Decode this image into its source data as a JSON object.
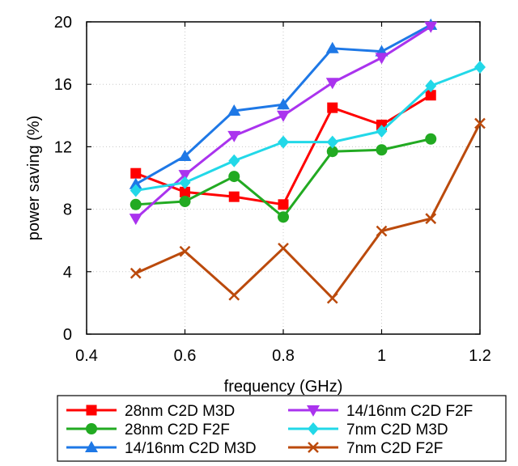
{
  "chart_data": {
    "type": "line",
    "xlabel": "frequency (GHz)",
    "ylabel": "power saving (%)",
    "xlim": [
      0.4,
      1.2
    ],
    "ylim": [
      0,
      20
    ],
    "xticks": [
      0.4,
      0.6,
      0.8,
      1,
      1.2
    ],
    "xtick_labels": [
      "0.4",
      "0.6",
      "0.8",
      "1",
      "1.2"
    ],
    "yticks": [
      0,
      4,
      8,
      12,
      16,
      20
    ],
    "ytick_labels": [
      "0",
      "4",
      "8",
      "12",
      "16",
      "20"
    ],
    "grid": true,
    "legend_position": "bottom",
    "series": [
      {
        "name": "28nm C2D M3D",
        "color": "#ff0000",
        "marker": "square",
        "x": [
          0.5,
          0.6,
          0.7,
          0.8,
          0.9,
          1.0,
          1.1
        ],
        "y": [
          10.3,
          9.1,
          8.8,
          8.3,
          14.5,
          13.4,
          15.3
        ]
      },
      {
        "name": "28nm C2D F2F",
        "color": "#22aa22",
        "marker": "circle",
        "x": [
          0.5,
          0.6,
          0.7,
          0.8,
          0.9,
          1.0,
          1.1
        ],
        "y": [
          8.3,
          8.5,
          10.1,
          7.5,
          11.7,
          11.8,
          12.5
        ]
      },
      {
        "name": "14/16nm C2D M3D",
        "color": "#1e78e6",
        "marker": "triangle-up",
        "x": [
          0.5,
          0.6,
          0.7,
          0.8,
          0.9,
          1.0,
          1.1
        ],
        "y": [
          9.6,
          11.4,
          14.3,
          14.7,
          18.3,
          18.1,
          19.8
        ]
      },
      {
        "name": "14/16nm C2D F2F",
        "color": "#aa33ee",
        "marker": "triangle-down",
        "x": [
          0.5,
          0.6,
          0.7,
          0.8,
          0.9,
          1.0,
          1.1
        ],
        "y": [
          7.4,
          10.2,
          12.7,
          14.0,
          16.1,
          17.7,
          19.7
        ]
      },
      {
        "name": "7nm C2D M3D",
        "color": "#22d8e8",
        "marker": "diamond",
        "x": [
          0.5,
          0.6,
          0.7,
          0.8,
          0.9,
          1.0,
          1.1,
          1.2
        ],
        "y": [
          9.2,
          9.7,
          11.1,
          12.3,
          12.3,
          13.0,
          15.9,
          17.1
        ]
      },
      {
        "name": "7nm C2D F2F",
        "color": "#bb4a0c",
        "marker": "x",
        "x": [
          0.5,
          0.6,
          0.7,
          0.8,
          0.9,
          1.0,
          1.1,
          1.2
        ],
        "y": [
          3.9,
          5.3,
          2.5,
          5.5,
          2.3,
          6.6,
          7.4,
          13.5
        ]
      }
    ]
  }
}
